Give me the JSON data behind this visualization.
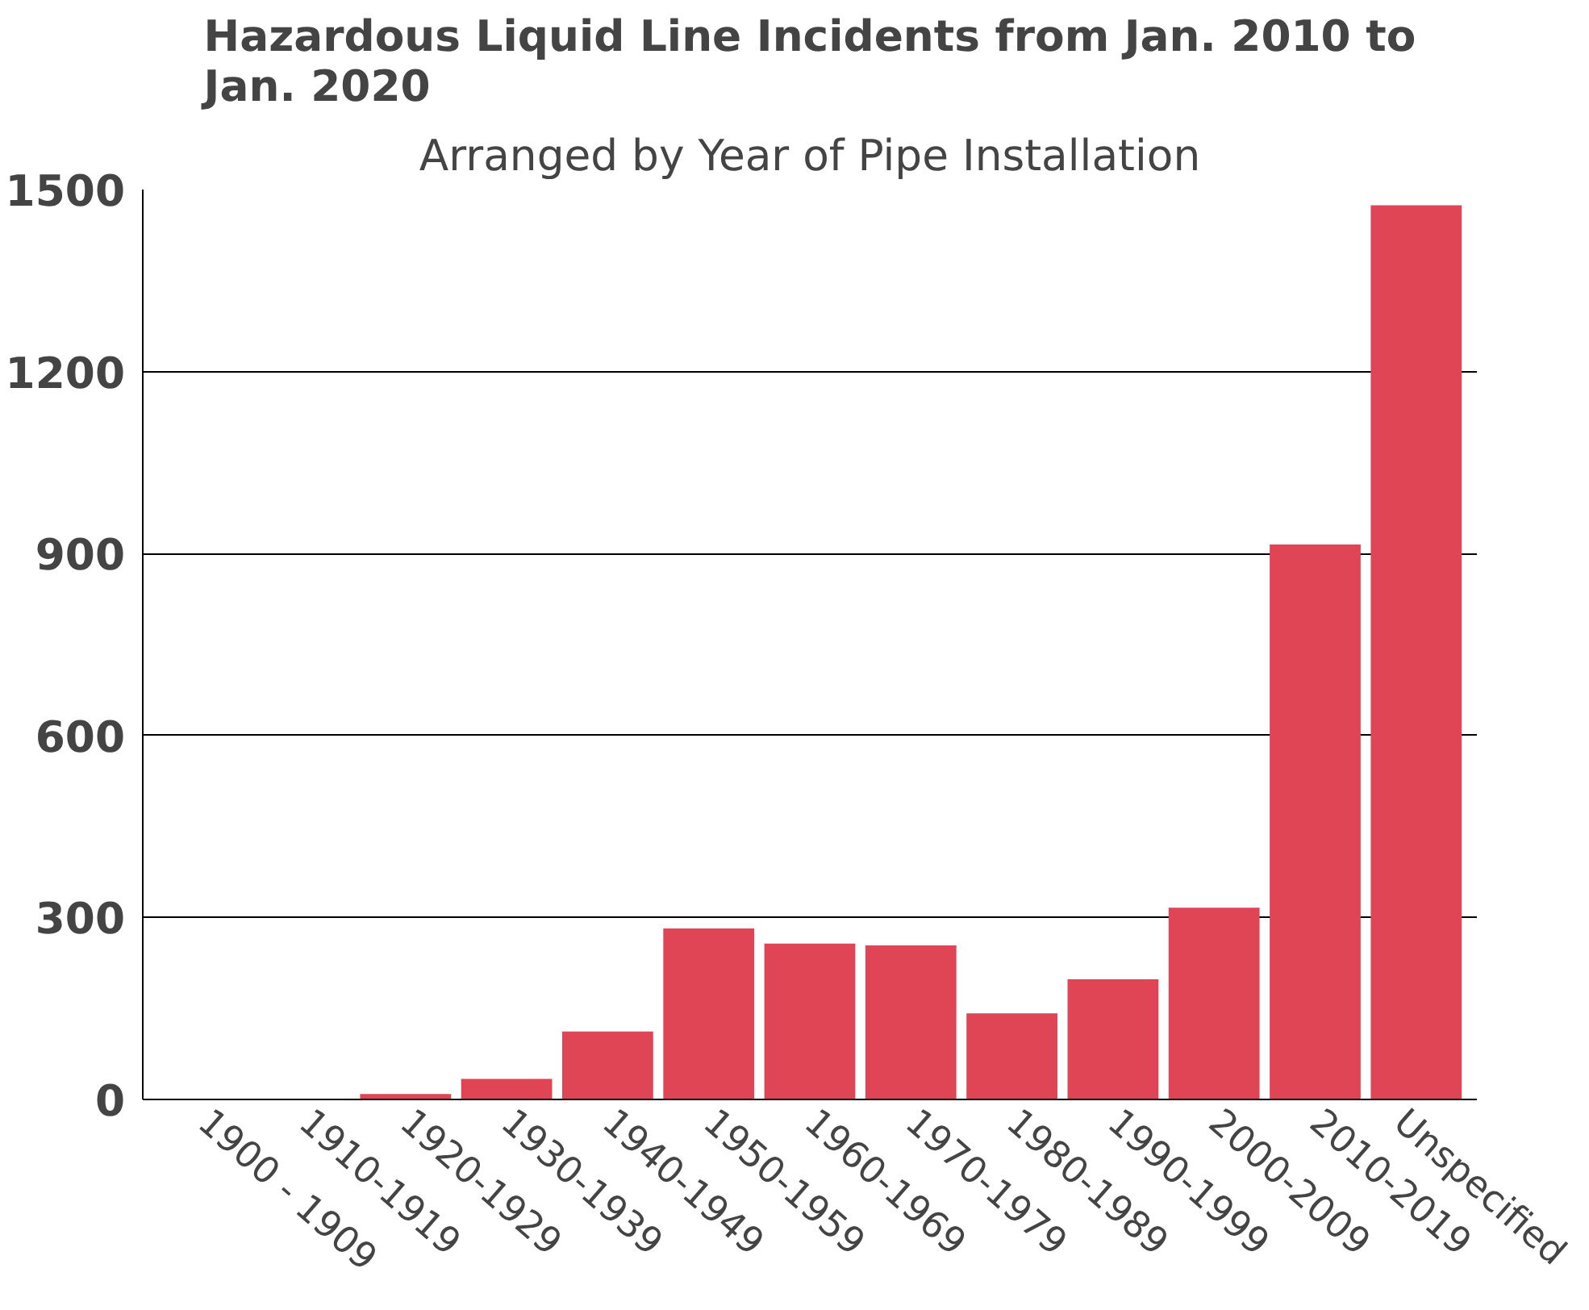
{
  "chart_data": {
    "type": "bar",
    "title": "Hazardous Liquid Line Incidents from Jan. 2010 to Jan. 2020",
    "subtitle": "Arranged by Year of Pipe Installation",
    "categories": [
      "1900 - 1909",
      "1910-1919",
      "1920-1929",
      "1930-1939",
      "1940-1949",
      "1950-1959",
      "1960-1969",
      "1970-1979",
      "1980-1989",
      "1990-1999",
      "2000-2009",
      "2010-2019",
      "Unspecified"
    ],
    "values": [
      0,
      0,
      9,
      34,
      112,
      282,
      257,
      254,
      142,
      198,
      316,
      915,
      1474
    ],
    "color": "#e04555",
    "ylim": [
      0,
      1500
    ],
    "yticks": [
      0,
      300,
      600,
      900,
      1200,
      1500
    ],
    "grid": "y"
  }
}
